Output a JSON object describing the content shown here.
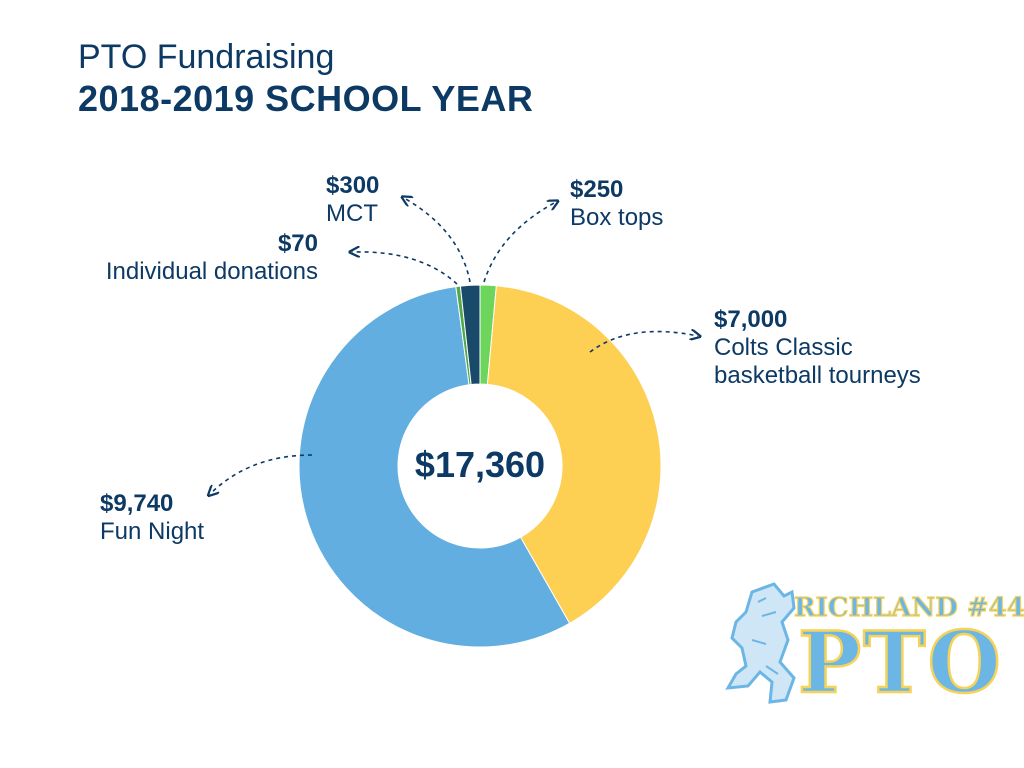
{
  "header": {
    "title": "PTO Fundraising",
    "subtitle": "2018-2019 SCHOOL YEAR"
  },
  "chart_data": {
    "type": "pie",
    "variant": "donut",
    "total_label": "$17,360",
    "slices": [
      {
        "name": "Box tops",
        "value": 250,
        "value_label": "$250",
        "color": "#6dd45c"
      },
      {
        "name": "Colts Classic basketball tourneys",
        "value": 7000,
        "value_label": "$7,000",
        "color": "#fdcf52"
      },
      {
        "name": "Fun Night",
        "value": 9740,
        "value_label": "$9,740",
        "color": "#62aee0"
      },
      {
        "name": "Individual donations",
        "value": 70,
        "value_label": "$70",
        "color": "#4fa84a"
      },
      {
        "name": "MCT",
        "value": 300,
        "value_label": "$300",
        "color": "#1a4a6a"
      }
    ]
  },
  "labels": {
    "mct": {
      "value": "$300",
      "name": "MCT"
    },
    "boxtops": {
      "value": "$250",
      "name": "Box tops"
    },
    "individual": {
      "value": "$70",
      "name": "Individual donations"
    },
    "colts": {
      "value": "$7,000",
      "name_line1": "Colts Classic",
      "name_line2": "basketball tourneys"
    },
    "funnight": {
      "value": "$9,740",
      "name": "Fun Night"
    }
  },
  "logo": {
    "line1": "RICHLAND #44",
    "line2": "PTO",
    "colors": {
      "fill": "#6cb6e6",
      "outline": "#f5d35a",
      "dark": "#0d3a64"
    }
  }
}
